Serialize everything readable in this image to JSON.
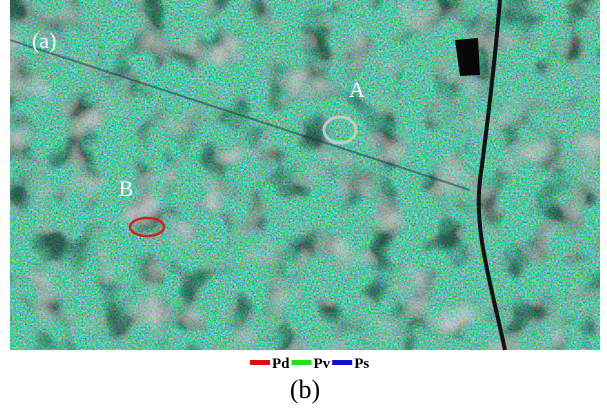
{
  "image": {
    "panel_label": "(a)",
    "markers": [
      {
        "label": "A",
        "color": "#c8c8c8"
      },
      {
        "label": "B",
        "color": "#d02020"
      }
    ]
  },
  "legend": [
    {
      "label": "Pd",
      "color": "#e01010"
    },
    {
      "label": "Pv",
      "color": "#20e020"
    },
    {
      "label": "Ps",
      "color": "#1010d0"
    }
  ],
  "caption": "(b)"
}
